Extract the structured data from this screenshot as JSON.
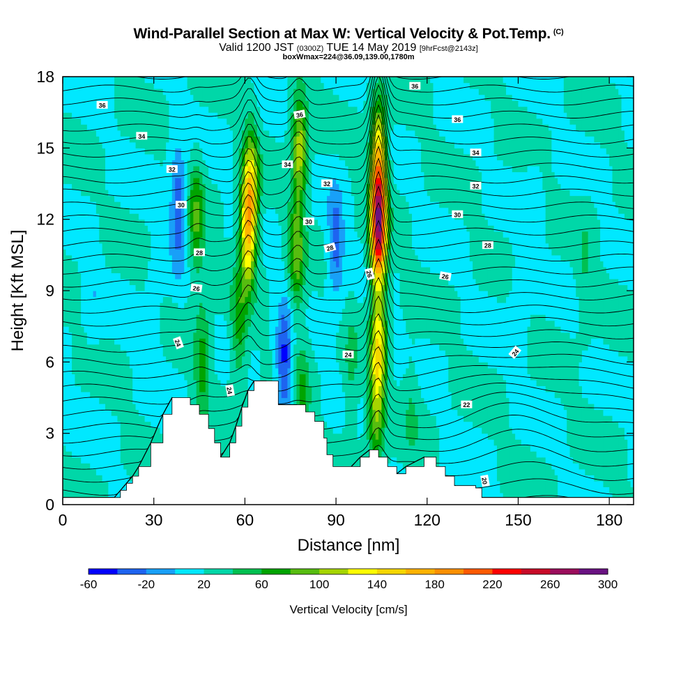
{
  "header": {
    "title": "Wind-Parallel Section at Max W: Vertical Velocity & Pot.Temp.",
    "copyright": "(C)",
    "valid_prefix": "Valid 1200 JST",
    "valid_utc": "(0300Z)",
    "valid_date": "TUE 14 May 2019",
    "forecast": "[9hrFcst@2143z]",
    "box_info": "boxWmax=224@36.09,139.00,1780m"
  },
  "chart_data": {
    "type": "heatmap",
    "title": "Wind-Parallel Section at Max W: Vertical Velocity & Pot.Temp.",
    "xlabel": "Distance [nm]",
    "ylabel": "Height [Kft MSL]",
    "xlim": [
      0,
      188
    ],
    "ylim": [
      0,
      18
    ],
    "xticks": [
      0,
      30,
      60,
      90,
      120,
      150,
      180
    ],
    "yticks": [
      0,
      3,
      6,
      9,
      12,
      15,
      18
    ],
    "colorbar": {
      "label": "Vertical Velocity [cm/s]",
      "min": -60,
      "step": 20,
      "tick_labels": [
        "-60",
        "-20",
        "20",
        "60",
        "100",
        "140",
        "180",
        "220",
        "260",
        "300"
      ],
      "colors": [
        "#0000ff",
        "#1e64f0",
        "#18a0f8",
        "#00e8ff",
        "#00d7a8",
        "#00c050",
        "#00a400",
        "#57bd10",
        "#a6d500",
        "#ffff00",
        "#f5d700",
        "#ffb300",
        "#fc9000",
        "#ff5a00",
        "#ff0000",
        "#c80a28",
        "#9b0d5c",
        "#6a1282"
      ]
    },
    "background_w": 20,
    "w_features": [
      {
        "x": 104,
        "y": 11.5,
        "w": 250
      },
      {
        "x": 104,
        "y": 14.5,
        "w": 150
      },
      {
        "x": 104,
        "y": 6.5,
        "w": 130
      },
      {
        "x": 103,
        "y": 3.5,
        "w": 80
      },
      {
        "x": 61,
        "y": 11.5,
        "w": 145
      },
      {
        "x": 62,
        "y": 13.5,
        "w": 110
      },
      {
        "x": 58,
        "y": 7.5,
        "w": 70
      },
      {
        "x": 78,
        "y": 15.0,
        "w": 110
      },
      {
        "x": 77,
        "y": 10.5,
        "w": 90
      },
      {
        "x": 79,
        "y": 4.5,
        "w": 60
      },
      {
        "x": 44,
        "y": 12.0,
        "w": 80
      },
      {
        "x": 46,
        "y": 6.0,
        "w": 70
      },
      {
        "x": 95,
        "y": 5.5,
        "w": 45
      },
      {
        "x": 115,
        "y": 4.0,
        "w": 40
      },
      {
        "x": 172,
        "y": 10.0,
        "w": 40
      },
      {
        "x": 73,
        "y": 6.0,
        "w": -50
      },
      {
        "x": 38,
        "y": 12.5,
        "w": -40
      },
      {
        "x": 90,
        "y": 11.0,
        "w": -30
      },
      {
        "x": 30,
        "y": 7.0,
        "w": 5
      },
      {
        "x": 150,
        "y": 8.0,
        "w": 0
      },
      {
        "x": 155,
        "y": 12.0,
        "w": 5
      },
      {
        "x": 10,
        "y": 9.0,
        "w": 5
      },
      {
        "x": 145,
        "y": 2.0,
        "w": 20
      }
    ],
    "terrain": {
      "x": [
        0,
        17,
        19,
        21,
        23,
        25,
        29,
        33,
        36,
        42,
        45,
        48,
        50,
        52,
        55,
        57,
        59,
        61,
        63,
        67,
        71,
        75,
        77,
        80,
        83,
        86,
        87,
        89,
        95,
        98,
        101,
        104,
        107,
        110,
        113,
        119,
        123,
        126,
        129,
        136,
        138,
        188
      ],
      "height": [
        0.3,
        0.3,
        0.6,
        0.9,
        1.2,
        1.6,
        2.6,
        3.8,
        4.5,
        4.2,
        3.8,
        3.2,
        2.6,
        2.0,
        2.6,
        3.3,
        4.1,
        4.8,
        5.2,
        5.2,
        4.2,
        4.2,
        4.2,
        3.9,
        3.5,
        2.8,
        2.1,
        1.6,
        1.6,
        2.0,
        2.3,
        2.0,
        1.6,
        1.3,
        1.6,
        2.0,
        1.6,
        1.2,
        0.8,
        0.7,
        0.3,
        0.3
      ]
    },
    "theta_contours": {
      "levels": [
        19,
        19.5,
        20,
        20.5,
        21,
        21.5,
        22,
        22.5,
        23,
        23.5,
        24,
        24.5,
        25,
        25.5,
        26,
        26.5,
        27,
        27.5,
        28,
        28.5,
        29,
        29.5,
        30,
        30.5,
        31,
        31.5,
        32,
        32.5,
        33,
        33.5,
        34,
        34.5,
        35,
        35.5,
        36,
        36.5,
        37,
        37.5
      ]
    },
    "contour_labels": [
      {
        "text": "36",
        "x": 13,
        "y": 16.8,
        "rotate": 0
      },
      {
        "text": "36",
        "x": 78,
        "y": 16.4,
        "rotate": -10
      },
      {
        "text": "36",
        "x": 116,
        "y": 17.6,
        "rotate": 0
      },
      {
        "text": "36",
        "x": 130,
        "y": 16.2,
        "rotate": 0
      },
      {
        "text": "34",
        "x": 26,
        "y": 15.5,
        "rotate": 0
      },
      {
        "text": "34",
        "x": 74,
        "y": 14.3,
        "rotate": 0
      },
      {
        "text": "34",
        "x": 136,
        "y": 14.8,
        "rotate": 0
      },
      {
        "text": "32",
        "x": 36,
        "y": 14.1,
        "rotate": 0
      },
      {
        "text": "32",
        "x": 87,
        "y": 13.5,
        "rotate": 0
      },
      {
        "text": "32",
        "x": 136,
        "y": 13.4,
        "rotate": 0
      },
      {
        "text": "30",
        "x": 39,
        "y": 12.6,
        "rotate": 0
      },
      {
        "text": "30",
        "x": 81,
        "y": 11.9,
        "rotate": 0
      },
      {
        "text": "30",
        "x": 130,
        "y": 12.2,
        "rotate": 0
      },
      {
        "text": "28",
        "x": 45,
        "y": 10.6,
        "rotate": 0
      },
      {
        "text": "28",
        "x": 88,
        "y": 10.8,
        "rotate": -15
      },
      {
        "text": "28",
        "x": 140,
        "y": 10.9,
        "rotate": 0
      },
      {
        "text": "26",
        "x": 44,
        "y": 9.1,
        "rotate": 8
      },
      {
        "text": "26",
        "x": 101,
        "y": 9.7,
        "rotate": 75
      },
      {
        "text": "26",
        "x": 126,
        "y": 9.6,
        "rotate": 10
      },
      {
        "text": "24",
        "x": 38,
        "y": 6.8,
        "rotate": 70
      },
      {
        "text": "24",
        "x": 55,
        "y": 4.8,
        "rotate": 80
      },
      {
        "text": "24",
        "x": 94,
        "y": 6.3,
        "rotate": 0
      },
      {
        "text": "24",
        "x": 149,
        "y": 6.4,
        "rotate": -50
      },
      {
        "text": "22",
        "x": 133,
        "y": 4.2,
        "rotate": 0
      },
      {
        "text": "20",
        "x": 139,
        "y": 1.0,
        "rotate": 80
      }
    ]
  }
}
